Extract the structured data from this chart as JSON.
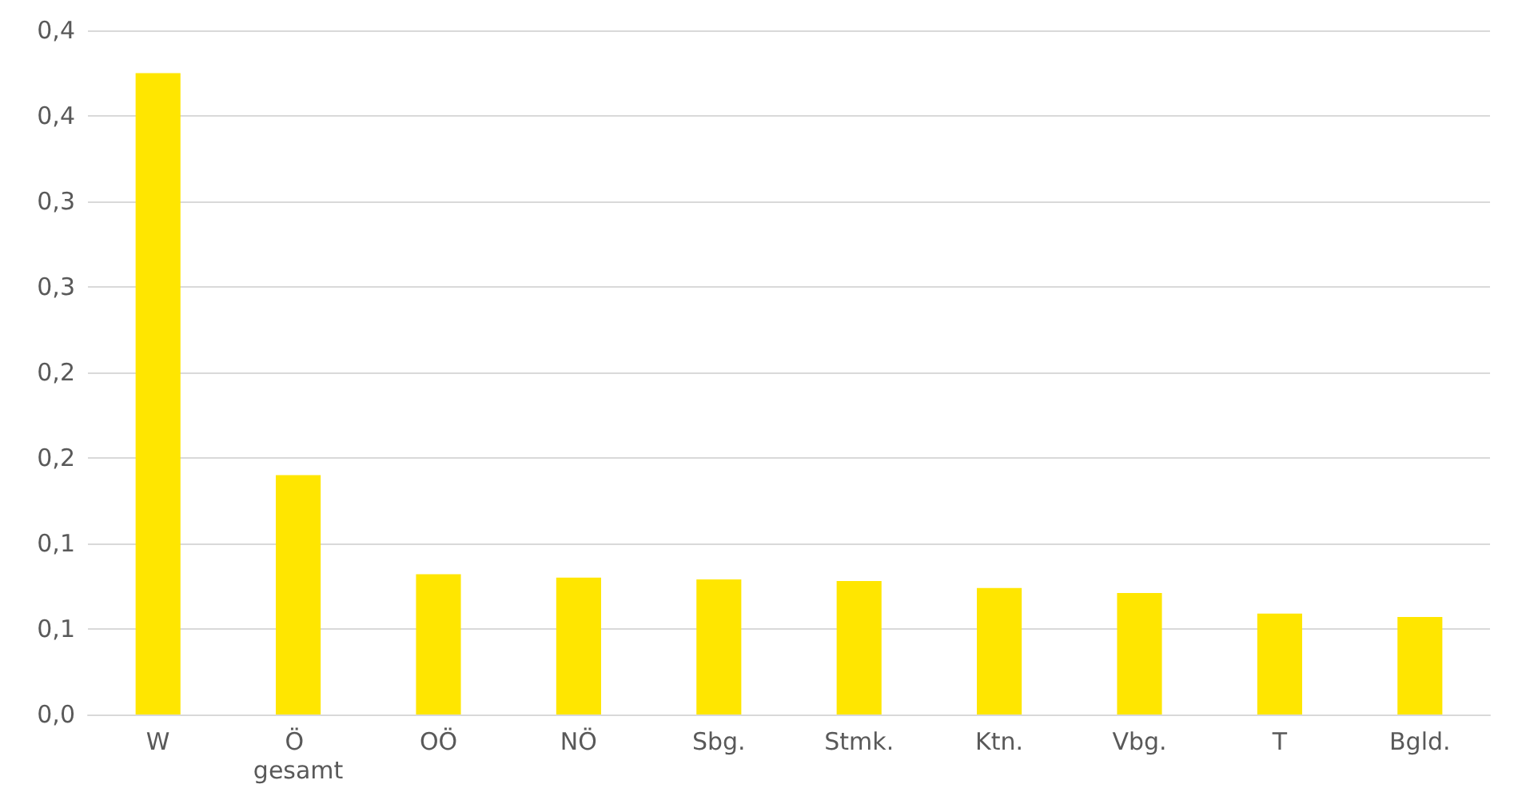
{
  "chart_data": {
    "type": "bar",
    "categories": [
      "W",
      "Ö gesamt",
      "OÖ",
      "NÖ",
      "Sbg.",
      "Stmk.",
      "Ktn.",
      "Vbg.",
      "T",
      "Bgld."
    ],
    "values": [
      0.375,
      0.14,
      0.082,
      0.08,
      0.079,
      0.078,
      0.074,
      0.071,
      0.059,
      0.057
    ],
    "color": "#ffe600",
    "ylim": [
      0,
      0.4
    ],
    "yticks": [
      {
        "value": 0,
        "label": "0,0"
      },
      {
        "value": 0.05,
        "label": "0,1"
      },
      {
        "value": 0.1,
        "label": "0,1"
      },
      {
        "value": 0.15,
        "label": "0,2"
      },
      {
        "value": 0.2,
        "label": "0,2"
      },
      {
        "value": 0.25,
        "label": "0,3"
      },
      {
        "value": 0.3,
        "label": "0,3"
      },
      {
        "value": 0.35,
        "label": "0,4"
      },
      {
        "value": 0.4,
        "label": "0,4"
      }
    ],
    "grid": "y"
  }
}
